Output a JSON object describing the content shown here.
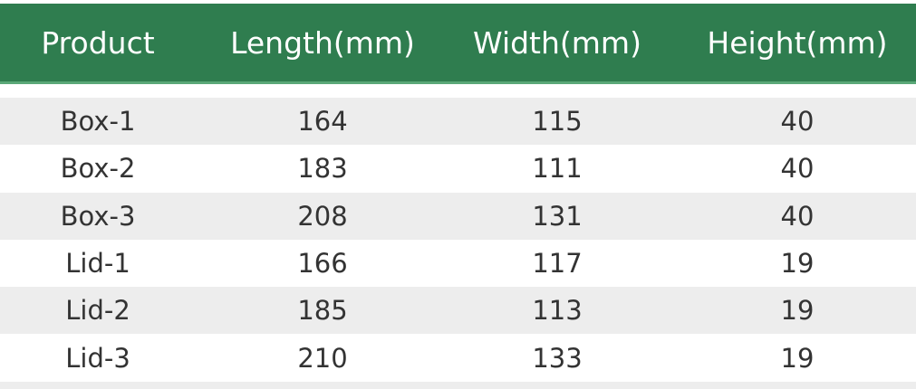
{
  "table": {
    "header_color": "#2f7d4f",
    "columns": [
      "Product",
      "Length(mm)",
      "Width(mm)",
      "Height(mm)"
    ],
    "rows": [
      [
        "Box-1",
        "164",
        "115",
        "40"
      ],
      [
        "Box-2",
        "183",
        "111",
        "40"
      ],
      [
        "Box-3",
        "208",
        "131",
        "40"
      ],
      [
        "Lid-1",
        "166",
        "117",
        "19"
      ],
      [
        "Lid-2",
        "185",
        "113",
        "19"
      ],
      [
        "Lid-3",
        "210",
        "133",
        "19"
      ]
    ]
  }
}
